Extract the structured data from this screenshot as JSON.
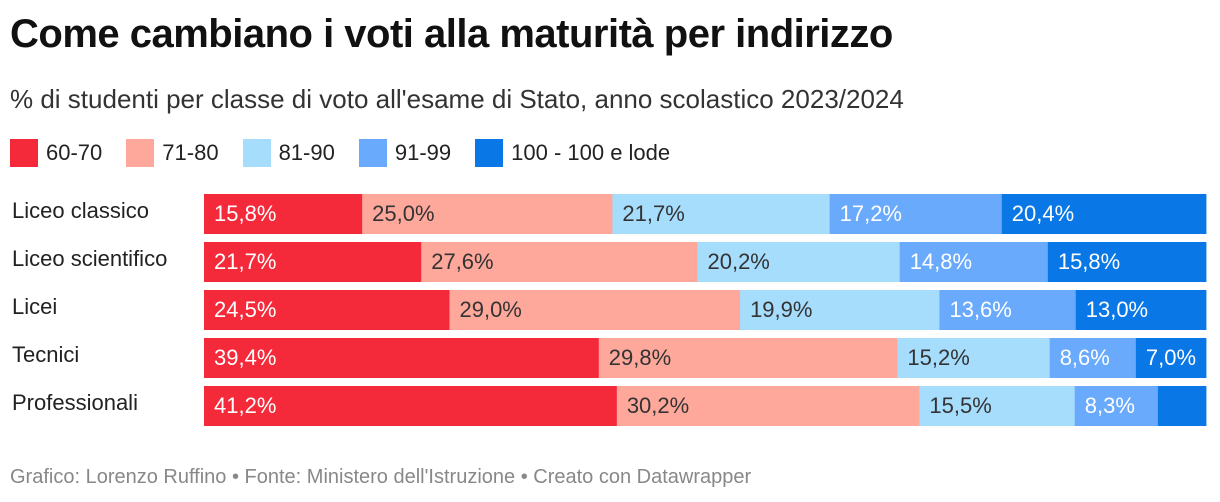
{
  "header": {
    "title": "Come cambiano i voti alla maturità per indirizzo",
    "subtitle": "% di studenti per classe di voto all'esame di Stato, anno scolastico 2023/2024"
  },
  "legend": [
    {
      "label": "60-70",
      "color": "#f42a3b"
    },
    {
      "label": "71-80",
      "color": "#fea89c"
    },
    {
      "label": "81-90",
      "color": "#a6dcfc"
    },
    {
      "label": "91-99",
      "color": "#69aafd"
    },
    {
      "label": "100 - 100 e lode",
      "color": "#0a77e6"
    }
  ],
  "chart_data": {
    "type": "bar",
    "orientation": "horizontal",
    "stacked": true,
    "categories": [
      "Liceo classico",
      "Liceo scientifico",
      "Licei",
      "Tecnici",
      "Professionali"
    ],
    "series": [
      {
        "name": "60-70",
        "values": [
          15.8,
          21.7,
          24.5,
          39.4,
          41.2
        ],
        "labels": [
          "15,8%",
          "21,7%",
          "24,5%",
          "39,4%",
          "41,2%"
        ],
        "label_color": "#ffffff"
      },
      {
        "name": "71-80",
        "values": [
          25.0,
          27.6,
          29.0,
          29.8,
          30.2
        ],
        "labels": [
          "25,0%",
          "27,6%",
          "29,0%",
          "29,8%",
          "30,2%"
        ],
        "label_color": "#333333"
      },
      {
        "name": "81-90",
        "values": [
          21.7,
          20.2,
          19.9,
          15.2,
          15.5
        ],
        "labels": [
          "21,7%",
          "20,2%",
          "19,9%",
          "15,2%",
          "15,5%"
        ],
        "label_color": "#333333"
      },
      {
        "name": "91-99",
        "values": [
          17.2,
          14.8,
          13.6,
          8.6,
          8.3
        ],
        "labels": [
          "17,2%",
          "14,8%",
          "13,6%",
          "8,6%",
          "8,3%"
        ],
        "label_color": "#ffffff"
      },
      {
        "name": "100 - 100 e lode",
        "values": [
          20.4,
          15.8,
          13.0,
          7.0,
          4.8
        ],
        "labels": [
          "20,4%",
          "15,8%",
          "13,0%",
          "7,0%",
          ""
        ],
        "label_color": "#ffffff"
      }
    ],
    "xlim": [
      0,
      100
    ],
    "grid": false,
    "legend_position": "top-left"
  },
  "footer": {
    "text": "Grafico: Lorenzo Ruffino • Fonte: Ministero dell'Istruzione • Creato con Datawrapper"
  }
}
